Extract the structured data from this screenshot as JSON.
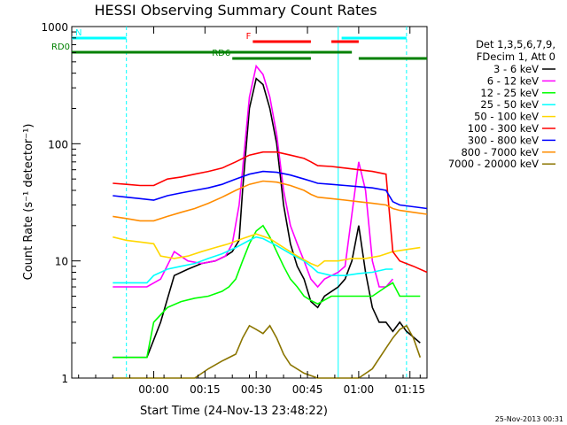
{
  "chart_data": {
    "type": "line",
    "title": "HESSI Observing Summary Count Rates",
    "xlabel": "Start Time (24-Nov-13 23:48:22)",
    "ylabel": "Count Rate (s⁻¹ detector⁻¹)",
    "y_scale": "log",
    "ylim": [
      1,
      1000
    ],
    "xlim_minutes": [
      -12,
      92
    ],
    "x_ticks": [
      {
        "label": "00:00",
        "min": 12
      },
      {
        "label": "00:15",
        "min": 27
      },
      {
        "label": "00:30",
        "min": 42
      },
      {
        "label": "00:45",
        "min": 57
      },
      {
        "label": "01:00",
        "min": 72
      },
      {
        "label": "01:15",
        "min": 87
      }
    ],
    "y_ticks": [
      {
        "label": "1",
        "value": 1
      },
      {
        "label": "10",
        "value": 10
      },
      {
        "label": "100",
        "value": 100
      },
      {
        "label": "1000",
        "value": 1000
      }
    ],
    "legend_header": [
      "Det 1,3,5,6,7,9,",
      "FDecim 1, Att 0"
    ],
    "legend_position": "right",
    "series": [
      {
        "name": "3 - 6 keV",
        "color": "#000000",
        "x": [
          0,
          10,
          14,
          18,
          22,
          26,
          30,
          33,
          35,
          37,
          38,
          40,
          42,
          44,
          46,
          48,
          50,
          52,
          54,
          56,
          58,
          60,
          62,
          66,
          68,
          70,
          72,
          74,
          76,
          78,
          80,
          82,
          84,
          86,
          90
        ],
        "y": [
          1.5,
          1.5,
          3.0,
          7.5,
          8.5,
          9.5,
          10,
          11,
          12,
          15,
          40,
          200,
          360,
          320,
          200,
          100,
          30,
          14,
          9,
          7,
          4.5,
          4,
          5,
          6,
          7,
          10,
          20,
          8,
          4,
          3,
          3,
          2.5,
          3,
          2.5,
          2
        ]
      },
      {
        "name": "6 - 12 keV",
        "color": "#ff00ff",
        "x": [
          0,
          10,
          14,
          18,
          22,
          26,
          30,
          33,
          35,
          37,
          38,
          40,
          42,
          44,
          46,
          48,
          50,
          52,
          54,
          56,
          58,
          60,
          62,
          66,
          68,
          70,
          72,
          74,
          76,
          78,
          80,
          82
        ],
        "y": [
          6,
          6,
          7,
          12,
          10,
          9.5,
          10,
          11,
          14,
          30,
          60,
          250,
          460,
          390,
          250,
          120,
          40,
          20,
          14,
          10,
          7,
          6,
          7,
          8,
          9,
          25,
          70,
          40,
          10,
          6,
          6,
          7
        ]
      },
      {
        "name": "12 - 25 keV",
        "color": "#00ff00",
        "x": [
          0,
          4,
          8,
          10,
          12,
          16,
          20,
          24,
          28,
          32,
          34,
          36,
          38,
          40,
          42,
          44,
          46,
          48,
          50,
          52,
          54,
          56,
          58,
          60,
          64,
          68,
          72,
          76,
          80,
          82,
          84,
          88,
          90
        ],
        "y": [
          1.5,
          1.5,
          1.5,
          1.5,
          3,
          4,
          4.5,
          4.8,
          5,
          5.5,
          6,
          7,
          10,
          14,
          18,
          20,
          16,
          12,
          9,
          7,
          6,
          5,
          4.6,
          4.3,
          5,
          5,
          5,
          5,
          6,
          6.5,
          5,
          5,
          5
        ]
      },
      {
        "name": "25 - 50 keV",
        "color": "#00ffff",
        "x": [
          0,
          4,
          8,
          10,
          12,
          16,
          20,
          24,
          28,
          32,
          36,
          40,
          42,
          44,
          48,
          52,
          56,
          58,
          60,
          64,
          68,
          72,
          76,
          80,
          82
        ],
        "y": [
          6.5,
          6.5,
          6.5,
          6.5,
          7.5,
          8.5,
          9,
          9.5,
          10.5,
          11.5,
          13,
          15,
          16,
          15.5,
          13.5,
          11.5,
          10,
          9,
          8,
          7.5,
          7.5,
          7.8,
          8,
          8.5,
          8.5
        ]
      },
      {
        "name": "50 - 100 keV",
        "color": "#ffd700",
        "x": [
          0,
          4,
          8,
          12,
          14,
          18,
          22,
          26,
          30,
          34,
          38,
          42,
          46,
          50,
          54,
          58,
          60,
          62,
          66,
          70,
          74,
          78,
          82,
          86,
          90
        ],
        "y": [
          16,
          15,
          14.5,
          14,
          11,
          10.5,
          11,
          12,
          13,
          14,
          15.5,
          17,
          15.5,
          13,
          11,
          9.5,
          9,
          10,
          10,
          10.5,
          10.5,
          11,
          12,
          12.5,
          13
        ]
      },
      {
        "name": "100 - 300 keV",
        "color": "#ff0000",
        "x": [
          0,
          4,
          8,
          12,
          16,
          20,
          24,
          28,
          32,
          36,
          40,
          44,
          48,
          52,
          56,
          58,
          60,
          64,
          68,
          72,
          76,
          80,
          82,
          84,
          88,
          92
        ],
        "y": [
          46,
          45,
          44,
          44,
          50,
          52,
          55,
          58,
          62,
          70,
          80,
          85,
          85,
          80,
          75,
          70,
          65,
          64,
          62,
          60,
          58,
          55,
          12,
          10,
          9,
          8
        ]
      },
      {
        "name": "300 - 800 keV",
        "color": "#0000ff",
        "x": [
          0,
          4,
          8,
          12,
          16,
          20,
          24,
          28,
          32,
          36,
          40,
          44,
          48,
          52,
          56,
          58,
          60,
          64,
          68,
          72,
          76,
          80,
          82,
          84,
          88,
          92
        ],
        "y": [
          36,
          35,
          34,
          33,
          36,
          38,
          40,
          42,
          45,
          50,
          55,
          58,
          57,
          54,
          50,
          48,
          46,
          45,
          44,
          43,
          42,
          40,
          32,
          30,
          29,
          28
        ]
      },
      {
        "name": "800 - 7000 keV",
        "color": "#ff8c00",
        "x": [
          0,
          4,
          8,
          12,
          16,
          20,
          24,
          28,
          32,
          36,
          40,
          44,
          48,
          52,
          56,
          58,
          60,
          64,
          68,
          72,
          76,
          80,
          82,
          84,
          88,
          92
        ],
        "y": [
          24,
          23,
          22,
          22,
          24,
          26,
          28,
          31,
          35,
          40,
          45,
          48,
          47,
          44,
          40,
          37,
          35,
          34,
          33,
          32,
          31,
          30,
          28,
          27,
          26,
          25
        ]
      },
      {
        "name": "7000 - 20000 keV",
        "color": "#8b7500",
        "x": [
          0,
          6,
          12,
          18,
          24,
          28,
          32,
          36,
          38,
          40,
          42,
          44,
          46,
          48,
          50,
          52,
          56,
          60,
          64,
          68,
          72,
          76,
          80,
          82,
          84,
          86,
          88,
          90
        ],
        "y": [
          1.0,
          1.0,
          1.0,
          1.0,
          1.0,
          1.2,
          1.4,
          1.6,
          2.2,
          2.8,
          2.6,
          2.4,
          2.8,
          2.2,
          1.6,
          1.3,
          1.1,
          1.0,
          1.0,
          1.0,
          1.0,
          1.2,
          1.8,
          2.2,
          2.6,
          2.8,
          2.2,
          1.5
        ]
      }
    ],
    "status_bars": [
      {
        "label": "N",
        "color": "#00ffff",
        "start": -12,
        "end": 4
      },
      {
        "label": "",
        "color": "#00ffff",
        "start": 67,
        "end": 86
      },
      {
        "label": "F",
        "color": "#ff0000",
        "start": 41,
        "end": 58
      },
      {
        "label": "",
        "color": "#ff0000",
        "start": 64,
        "end": 72
      },
      {
        "label": "RD0",
        "color": "#008000",
        "start": -12,
        "end": 58
      },
      {
        "label": "",
        "color": "#008000",
        "start": 58,
        "end": 70
      },
      {
        "label": "RD6",
        "color": "#008000",
        "start": 35,
        "end": 58
      },
      {
        "label": "",
        "color": "#008000",
        "start": 72,
        "end": 92
      }
    ],
    "vlines": [
      {
        "min": 4,
        "color": "#00ffff",
        "style": "dashed"
      },
      {
        "min": 66,
        "color": "#00ffff",
        "style": "solid"
      },
      {
        "min": 86,
        "color": "#00ffff",
        "style": "dashed"
      }
    ]
  },
  "timestamp": "25-Nov-2013 00:31"
}
